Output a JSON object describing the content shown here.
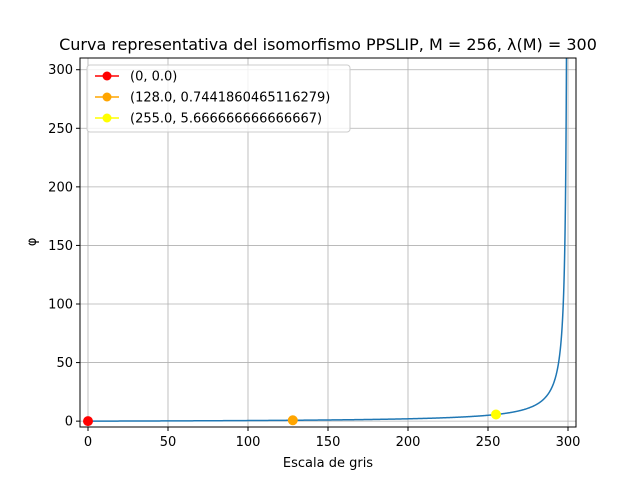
{
  "chart_data": {
    "type": "line",
    "title": "Curva representativa del isomorfismo PPSLIP, M = 256, λ(M) = 300",
    "xlabel": "Escala de gris",
    "ylabel": "φ",
    "xlim": [
      -5,
      305
    ],
    "ylim": [
      -5,
      310
    ],
    "xticks": [
      0,
      50,
      100,
      150,
      200,
      250,
      300
    ],
    "yticks": [
      0,
      50,
      100,
      150,
      200,
      250,
      300
    ],
    "grid": true,
    "legend_position": "top-left",
    "curve": {
      "color": "#1f77b4",
      "lambda": 300,
      "x_start": 0,
      "x_end": 299.5
    },
    "points": [
      {
        "label": "(0, 0.0)",
        "x": 0,
        "y": 0.0,
        "color": "#ff0000"
      },
      {
        "label": "(128.0, 0.7441860465116279)",
        "x": 128.0,
        "y": 0.7441860465116279,
        "color": "#ffa500"
      },
      {
        "label": "(255.0, 5.666666666666667)",
        "x": 255.0,
        "y": 5.666666666666667,
        "color": "#ffff00"
      }
    ]
  }
}
